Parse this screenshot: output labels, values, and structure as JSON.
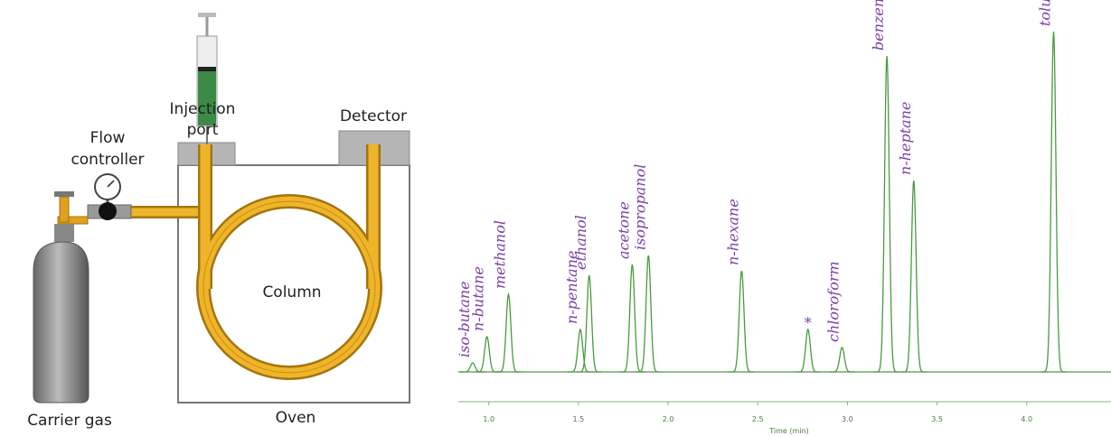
{
  "diagram": {
    "labels": {
      "injection_port": [
        "Injection",
        "port"
      ],
      "detector": "Detector",
      "flow_controller": [
        "Flow",
        "controller"
      ],
      "column": "Column",
      "oven": "Oven",
      "carrier_gas": "Carrier gas"
    }
  },
  "chart_data": {
    "type": "chromatogram",
    "xlabel": "Time (min)",
    "xlim": [
      0.83,
      4.47
    ],
    "ylim": [
      0,
      400
    ],
    "xticks": [
      {
        "value": 1,
        "label": "1.0"
      },
      1.5,
      {
        "value": 2,
        "label": "2.0"
      },
      2.5,
      {
        "value": 3,
        "label": "3.0"
      },
      3.5,
      {
        "value": 4,
        "label": "4.0"
      }
    ],
    "color": "#4a9a40",
    "label_color": "#7b3fa6",
    "peaks": [
      {
        "name": "iso-butane",
        "x": 0.91,
        "height": 10
      },
      {
        "name": "n-butane",
        "x": 0.99,
        "height": 39
      },
      {
        "name": "methanol",
        "x": 1.11,
        "height": 86
      },
      {
        "name": "n-pentane",
        "x": 1.51,
        "height": 47
      },
      {
        "name": "ethanol",
        "x": 1.56,
        "height": 107
      },
      {
        "name": "acetone",
        "x": 1.8,
        "height": 119
      },
      {
        "name": "isopropanol",
        "x": 1.89,
        "height": 129
      },
      {
        "name": "n-hexane",
        "x": 2.41,
        "height": 112
      },
      {
        "name": "*",
        "x": 2.78,
        "height": 47
      },
      {
        "name": "chloroform",
        "x": 2.97,
        "height": 27
      },
      {
        "name": "benzene",
        "x": 3.22,
        "height": 350
      },
      {
        "name": "n-heptane",
        "x": 3.37,
        "height": 212
      },
      {
        "name": "toluene",
        "x": 4.15,
        "height": 377
      }
    ]
  }
}
